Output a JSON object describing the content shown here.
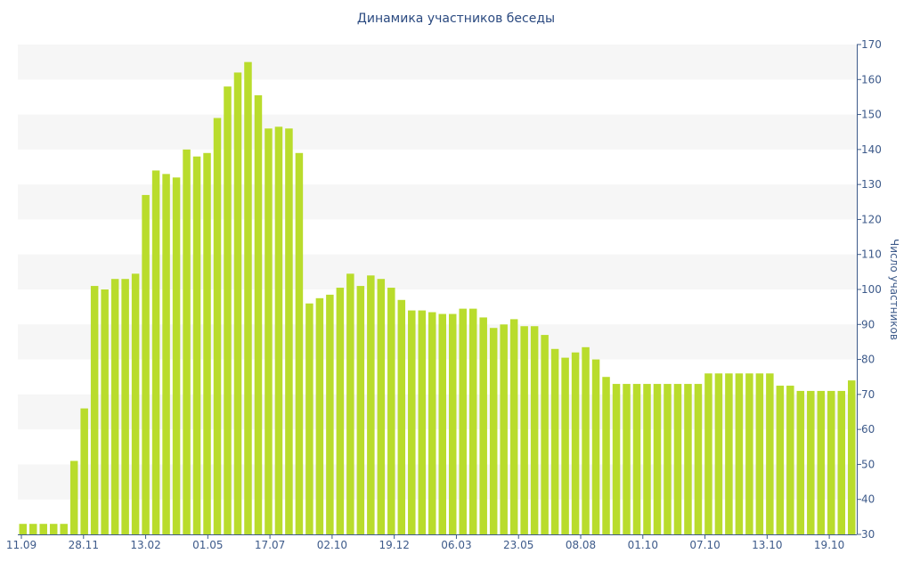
{
  "chart_data": {
    "type": "bar",
    "title": "Динамика участников беседы",
    "xlabel": "",
    "ylabel": "Число участников",
    "ylim": [
      30,
      170
    ],
    "yticks": [
      30,
      40,
      50,
      60,
      70,
      80,
      90,
      100,
      110,
      120,
      130,
      140,
      150,
      160,
      170
    ],
    "x_tick_labels": [
      "11.09",
      "28.11",
      "13.02",
      "01.05",
      "17.07",
      "02.10",
      "19.12",
      "06.03",
      "23.05",
      "08.08",
      "01.10",
      "07.10",
      "13.10",
      "19.10"
    ],
    "grid": "alternating horizontal bands",
    "colors": {
      "bar": "#b9dc2c",
      "band": "#f6f6f6",
      "axis": "#3d5a8a",
      "title": "#2b4a80"
    },
    "values": [
      33,
      33,
      33,
      33,
      33,
      51,
      66,
      101,
      100,
      103,
      103,
      104.5,
      127,
      134,
      133,
      132,
      140,
      138,
      139,
      149,
      158,
      162,
      165,
      155.5,
      146,
      146.5,
      146,
      139,
      96,
      97.5,
      98.5,
      100.5,
      104.5,
      101,
      104,
      103,
      100.5,
      97,
      94,
      94,
      93.5,
      93,
      93,
      94.5,
      94.5,
      92,
      89,
      90,
      91.5,
      89.5,
      89.5,
      87,
      83,
      80.5,
      82,
      83.5,
      80,
      75,
      73,
      73,
      73,
      73,
      73,
      73,
      73,
      73,
      73,
      76,
      76,
      76,
      76,
      76,
      76,
      76,
      72.5,
      72.5,
      71,
      71,
      71,
      71,
      71,
      74
    ]
  }
}
